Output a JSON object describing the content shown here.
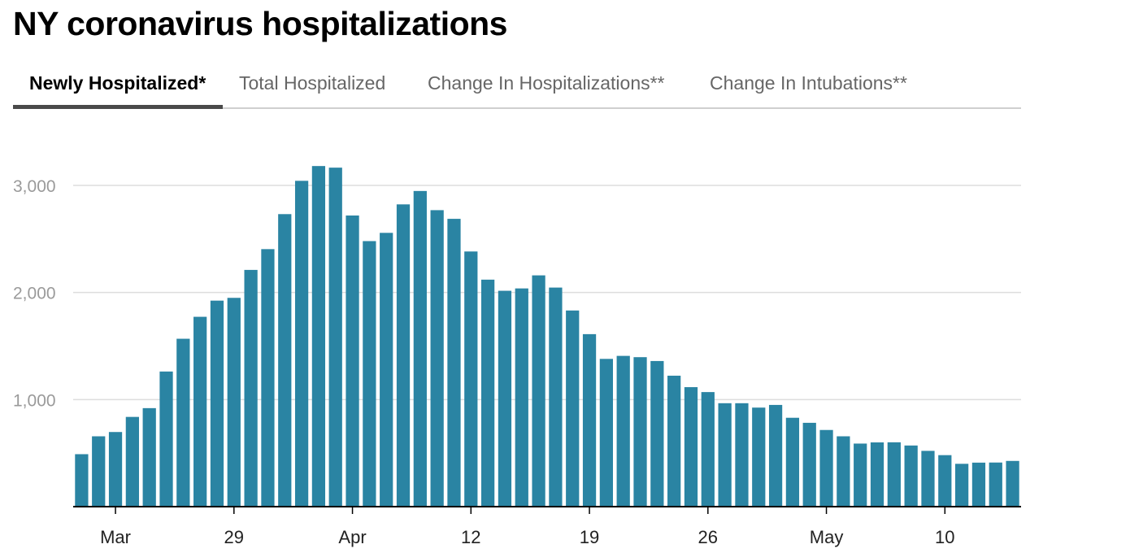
{
  "title": "NY coronavirus hospitalizations",
  "tabs": [
    {
      "label": "Newly Hospitalized*",
      "active": true
    },
    {
      "label": "Total Hospitalized",
      "active": false
    },
    {
      "label": "Change In Hospitalizations**",
      "active": false
    },
    {
      "label": "Change In Intubations**",
      "active": false
    }
  ],
  "colors": {
    "bar": "#2a84a3",
    "grid": "#dddddd",
    "axis": "#000000",
    "ytick": "#9a9a9a"
  },
  "chart_data": {
    "type": "bar",
    "title": "",
    "xlabel": "",
    "ylabel": "",
    "ylim": [
      0,
      3300
    ],
    "yticks": [
      1000,
      2000,
      3000
    ],
    "ytick_labels": [
      "1,000",
      "2,000",
      "3,000"
    ],
    "grid": true,
    "categories": [
      "Mar 20",
      "Mar 21",
      "Mar 22",
      "Mar 23",
      "Mar 24",
      "Mar 25",
      "Mar 26",
      "Mar 27",
      "Mar 28",
      "Mar 29",
      "Mar 30",
      "Mar 31",
      "Apr 1",
      "Apr 2",
      "Apr 3",
      "Apr 4",
      "Apr 5",
      "Apr 6",
      "Apr 7",
      "Apr 8",
      "Apr 9",
      "Apr 10",
      "Apr 11",
      "Apr 12",
      "Apr 13",
      "Apr 14",
      "Apr 15",
      "Apr 16",
      "Apr 17",
      "Apr 18",
      "Apr 19",
      "Apr 20",
      "Apr 21",
      "Apr 22",
      "Apr 23",
      "Apr 24",
      "Apr 25",
      "Apr 26",
      "Apr 27",
      "Apr 28",
      "Apr 29",
      "Apr 30",
      "May 1",
      "May 2",
      "May 3",
      "May 4",
      "May 5",
      "May 6",
      "May 7",
      "May 8",
      "May 9",
      "May 10",
      "May 11",
      "May 12",
      "May 13",
      "May 14"
    ],
    "values": [
      490,
      657,
      697,
      838,
      920,
      1262,
      1568,
      1773,
      1924,
      1950,
      2211,
      2405,
      2732,
      3043,
      3181,
      3166,
      2719,
      2480,
      2557,
      2823,
      2948,
      2769,
      2688,
      2383,
      2120,
      2016,
      2038,
      2160,
      2046,
      1832,
      1611,
      1380,
      1408,
      1396,
      1360,
      1223,
      1116,
      1070,
      966,
      966,
      925,
      950,
      830,
      783,
      716,
      657,
      589,
      600,
      601,
      571,
      521,
      481,
      400,
      411,
      412,
      427
    ],
    "xticks": [
      {
        "label": "Mar",
        "at": "Mar 22"
      },
      {
        "label": "29",
        "at": "Mar 29"
      },
      {
        "label": "Apr",
        "at": "Apr 5"
      },
      {
        "label": "12",
        "at": "Apr 12"
      },
      {
        "label": "19",
        "at": "Apr 19"
      },
      {
        "label": "26",
        "at": "Apr 26"
      },
      {
        "label": "May",
        "at": "May 3"
      },
      {
        "label": "10",
        "at": "May 10"
      }
    ]
  }
}
